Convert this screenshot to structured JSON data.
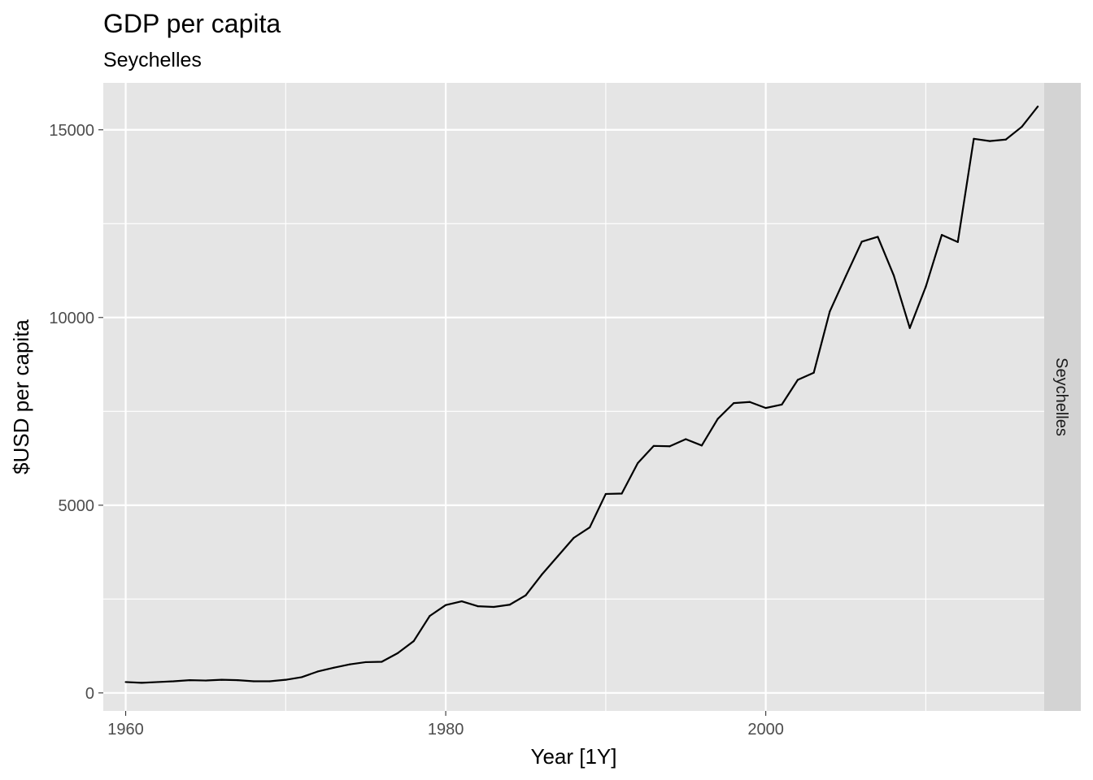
{
  "chart_data": {
    "type": "line",
    "title": "GDP per capita",
    "subtitle": "Seychelles",
    "xlabel": "Year [1Y]",
    "ylabel": "$USD per capita",
    "facet_label": "Seychelles",
    "xlim": [
      1958.6,
      2017.4
    ],
    "ylim": [
      -480,
      16250
    ],
    "x_ticks": [
      1960,
      1980,
      2000
    ],
    "x_minor_ticks": [
      1970,
      1990,
      2010
    ],
    "y_ticks": [
      0,
      5000,
      10000,
      15000
    ],
    "y_minor_ticks": [
      2500,
      7500,
      12500
    ],
    "grid": true,
    "colors": {
      "panel_background": "#e5e5e5",
      "grid": "#ffffff",
      "line": "#000000",
      "strip_background": "#d3d3d3"
    },
    "series": [
      {
        "x": [
          1960,
          1961,
          1962,
          1963,
          1964,
          1965,
          1966,
          1967,
          1968,
          1969,
          1970,
          1971,
          1972,
          1973,
          1974,
          1975,
          1976,
          1977,
          1978,
          1979,
          1980,
          1981,
          1982,
          1983,
          1984,
          1985,
          1986,
          1987,
          1988,
          1989,
          1990,
          1991,
          1992,
          1993,
          1994,
          1995,
          1996,
          1997,
          1998,
          1999,
          2000,
          2001,
          2002,
          2003,
          2004,
          2005,
          2006,
          2007,
          2008,
          2009,
          2010,
          2011,
          2012,
          2013,
          2014,
          2015,
          2016,
          2017
        ],
        "values": [
          290,
          270,
          290,
          310,
          340,
          330,
          350,
          340,
          310,
          310,
          350,
          420,
          570,
          670,
          760,
          820,
          830,
          1060,
          1380,
          2050,
          2340,
          2440,
          2310,
          2290,
          2350,
          2600,
          3150,
          3640,
          4130,
          4410,
          5300,
          5310,
          6120,
          6580,
          6570,
          6760,
          6590,
          7300,
          7720,
          7750,
          7590,
          7680,
          8340,
          8530,
          10160,
          11100,
          12020,
          12150,
          11120,
          9720,
          10820,
          12200,
          12010,
          14760,
          14700,
          14740,
          15080,
          15620
        ]
      }
    ]
  }
}
